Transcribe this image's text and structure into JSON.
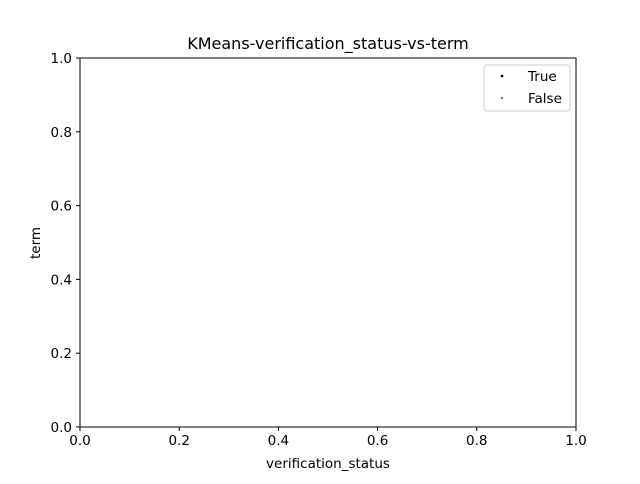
{
  "chart_data": {
    "type": "scatter",
    "title": "KMeans-verification_status-vs-term",
    "xlabel": "verification_status",
    "ylabel": "term",
    "xlim": [
      0.0,
      1.0
    ],
    "ylim": [
      0.0,
      1.0
    ],
    "xticks": [
      "0.0",
      "0.2",
      "0.4",
      "0.6",
      "0.8",
      "1.0"
    ],
    "yticks": [
      "0.0",
      "0.2",
      "0.4",
      "0.6",
      "0.8",
      "1.0"
    ],
    "grid": false,
    "legend_position": "upper-right",
    "series": [
      {
        "name": "True",
        "color": "#000000",
        "x": [],
        "y": []
      },
      {
        "name": "False",
        "color": "#808080",
        "x": [],
        "y": []
      }
    ]
  }
}
